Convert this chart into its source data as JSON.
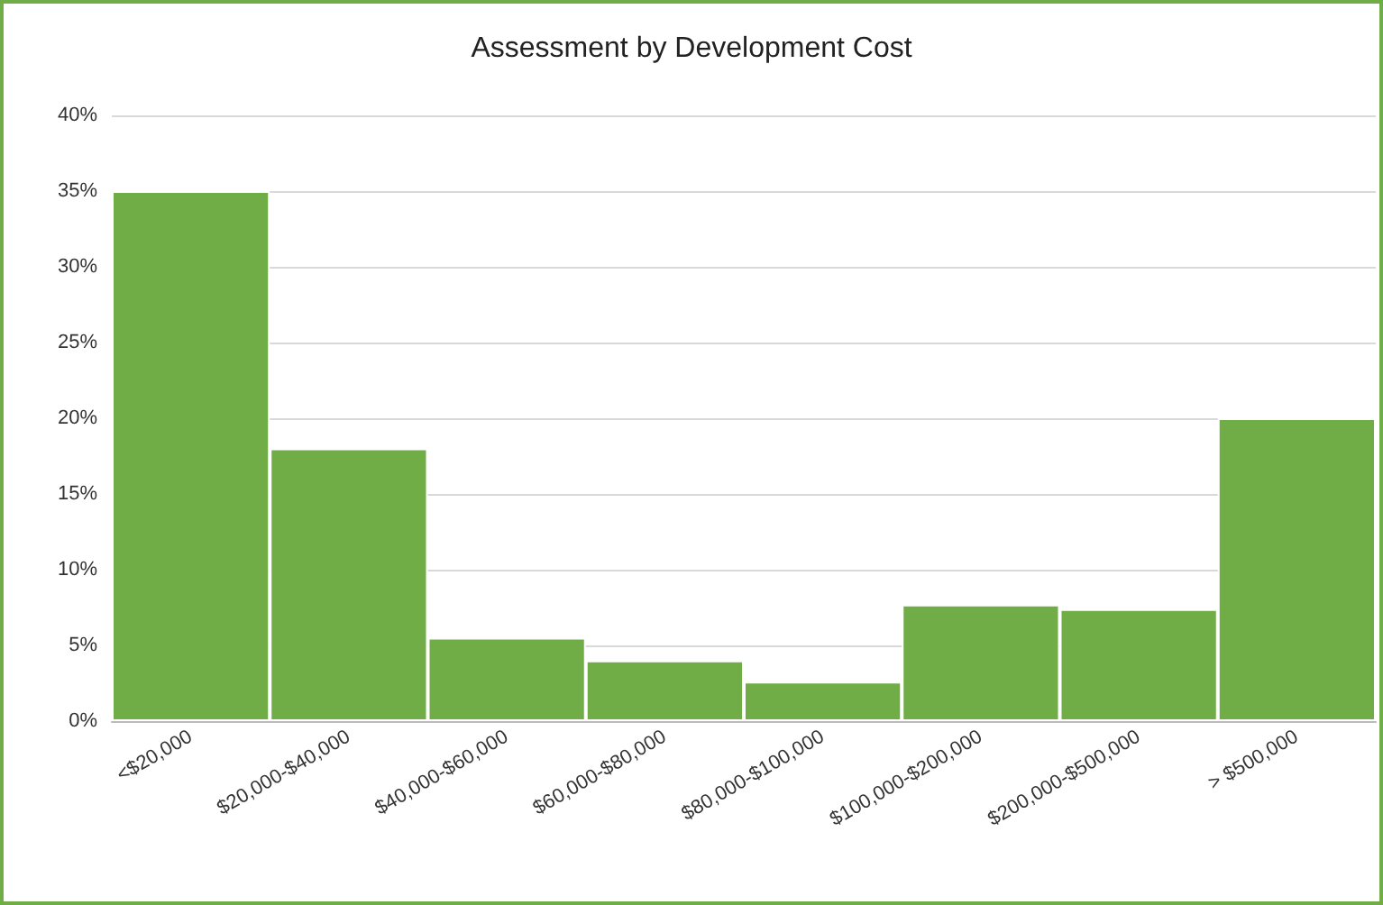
{
  "chart_data": {
    "type": "bar",
    "title": "Assessment by Development Cost",
    "categories": [
      "<$20,000",
      "$20,000-$40,000",
      "$40,000-$60,000",
      "$60,000-$80,000",
      "$80,000-$100,000",
      "$100,000-$200,000",
      "$200,000-$500,000",
      "> $500,000"
    ],
    "values": [
      35,
      18,
      5.5,
      4,
      2.6,
      7.7,
      7.4,
      20
    ],
    "color": "#70ad47",
    "ylim": [
      0,
      40
    ],
    "yticks": [
      {
        "value": 0,
        "label": "0%"
      },
      {
        "value": 5,
        "label": "5%"
      },
      {
        "value": 10,
        "label": "10%"
      },
      {
        "value": 15,
        "label": "15%"
      },
      {
        "value": 20,
        "label": "20%"
      },
      {
        "value": 25,
        "label": "25%"
      },
      {
        "value": 30,
        "label": "30%"
      },
      {
        "value": 35,
        "label": "35%"
      },
      {
        "value": 40,
        "label": "40%"
      }
    ],
    "grid": true
  }
}
